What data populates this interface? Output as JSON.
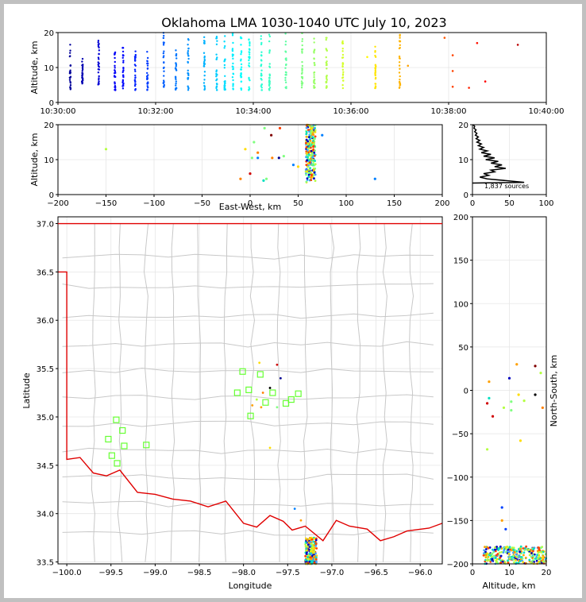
{
  "chart_data": {
    "title": "Oklahoma LMA 1030-1040 UTC July 10, 2023",
    "panels": [
      {
        "id": "time-altitude",
        "type": "scatter",
        "ylabel": "Altitude, km",
        "xlim": [
          "10:30:00",
          "10:40:00"
        ],
        "ylim": [
          0,
          20
        ],
        "xticks": [
          "10:30:00",
          "10:32:00",
          "10:34:00",
          "10:36:00",
          "10:38:00",
          "10:40:00"
        ],
        "yticks": [
          "0",
          "10",
          "20"
        ],
        "color_scale": "time (blue early to red late)",
        "source_columns": [
          {
            "t": "10:30:15",
            "ymin": 3.5,
            "ymax": 17
          },
          {
            "t": "10:30:30",
            "ymin": 5,
            "ymax": 13
          },
          {
            "t": "10:30:50",
            "ymin": 5,
            "ymax": 18
          },
          {
            "t": "10:31:10",
            "ymin": 3.5,
            "ymax": 15
          },
          {
            "t": "10:31:20",
            "ymin": 4,
            "ymax": 16
          },
          {
            "t": "10:31:35",
            "ymin": 3.5,
            "ymax": 15
          },
          {
            "t": "10:31:50",
            "ymin": 3.5,
            "ymax": 15
          },
          {
            "t": "10:32:10",
            "ymin": 3.5,
            "ymax": 20
          },
          {
            "t": "10:32:25",
            "ymin": 3.5,
            "ymax": 15
          },
          {
            "t": "10:32:40",
            "ymin": 3.5,
            "ymax": 19
          },
          {
            "t": "10:33:00",
            "ymin": 3.5,
            "ymax": 19
          },
          {
            "t": "10:33:15",
            "ymin": 3.5,
            "ymax": 19
          },
          {
            "t": "10:33:25",
            "ymin": 3.5,
            "ymax": 19
          },
          {
            "t": "10:33:35",
            "ymin": 3.5,
            "ymax": 20
          },
          {
            "t": "10:33:45",
            "ymin": 3.5,
            "ymax": 20
          },
          {
            "t": "10:33:55",
            "ymin": 3.5,
            "ymax": 19
          },
          {
            "t": "10:34:10",
            "ymin": 3.5,
            "ymax": 20
          },
          {
            "t": "10:34:20",
            "ymin": 3.5,
            "ymax": 20
          },
          {
            "t": "10:34:40",
            "ymin": 4,
            "ymax": 20
          },
          {
            "t": "10:35:00",
            "ymin": 4,
            "ymax": 20
          },
          {
            "t": "10:35:15",
            "ymin": 4,
            "ymax": 19
          },
          {
            "t": "10:35:30",
            "ymin": 4,
            "ymax": 20
          },
          {
            "t": "10:35:50",
            "ymin": 4,
            "ymax": 18
          },
          {
            "t": "10:36:30",
            "ymin": 4,
            "ymax": 17
          },
          {
            "t": "10:37:00",
            "ymin": 4,
            "ymax": 20
          }
        ],
        "isolated_points": [
          {
            "t": "10:36:20",
            "y": 13
          },
          {
            "t": "10:37:10",
            "y": 10.5
          },
          {
            "t": "10:37:55",
            "y": 18.5
          },
          {
            "t": "10:38:05",
            "y": 13.5
          },
          {
            "t": "10:38:05",
            "y": 9
          },
          {
            "t": "10:38:05",
            "y": 4.5
          },
          {
            "t": "10:38:25",
            "y": 4.2
          },
          {
            "t": "10:38:35",
            "y": 17
          },
          {
            "t": "10:38:45",
            "y": 6
          },
          {
            "t": "10:39:25",
            "y": 16.5
          }
        ]
      },
      {
        "id": "eastwest-altitude",
        "type": "scatter",
        "xlabel": "East-West, km",
        "ylabel": "Altitude, km",
        "xlim": [
          -200,
          200
        ],
        "ylim": [
          0,
          20
        ],
        "xticks": [
          "−200",
          "−150",
          "−100",
          "−50",
          "0",
          "50",
          "100",
          "150",
          "200"
        ],
        "yticks": [
          "0",
          "10",
          "20"
        ],
        "cluster": {
          "xmin": 58,
          "xmax": 68,
          "ymin": 3.5,
          "ymax": 20
        },
        "points": [
          {
            "x": -150,
            "y": 13,
            "c": "#b4ff40"
          },
          {
            "x": -10,
            "y": 4.5,
            "c": "#ff8000"
          },
          {
            "x": -5,
            "y": 13,
            "c": "#ffdd00"
          },
          {
            "x": 0,
            "y": 6,
            "c": "#d00000"
          },
          {
            "x": 2,
            "y": 10.5,
            "c": "#80ff80"
          },
          {
            "x": 4,
            "y": 15,
            "c": "#80ff80"
          },
          {
            "x": 8,
            "y": 10.5,
            "c": "#0080ff"
          },
          {
            "x": 8,
            "y": 12,
            "c": "#ff8000"
          },
          {
            "x": 14,
            "y": 4,
            "c": "#00e0c0"
          },
          {
            "x": 15,
            "y": 19,
            "c": "#80ff80"
          },
          {
            "x": 17,
            "y": 4.5,
            "c": "#80ff80"
          },
          {
            "x": 22,
            "y": 17,
            "c": "#800000"
          },
          {
            "x": 23,
            "y": 10.5,
            "c": "#ff8000"
          },
          {
            "x": 30,
            "y": 10.5,
            "c": "#000090"
          },
          {
            "x": 31,
            "y": 19,
            "c": "#ff4000"
          },
          {
            "x": 35,
            "y": 11,
            "c": "#80ff80"
          },
          {
            "x": 45,
            "y": 8.5,
            "c": "#0080ff"
          },
          {
            "x": 50,
            "y": 8,
            "c": "#ffdd00"
          },
          {
            "x": 75,
            "y": 17,
            "c": "#0080ff"
          },
          {
            "x": 130,
            "y": 4.5,
            "c": "#0080ff"
          }
        ]
      },
      {
        "id": "altitude-histogram",
        "type": "line",
        "xlim": [
          0,
          100
        ],
        "ylim": [
          0,
          20
        ],
        "xticks": [
          "0",
          "50",
          "100"
        ],
        "yticks": [
          "0",
          "10",
          "20"
        ],
        "annotation": "1,837 sources",
        "profile": [
          {
            "alt": 3.5,
            "n": 70
          },
          {
            "alt": 4.0,
            "n": 45
          },
          {
            "alt": 4.5,
            "n": 20
          },
          {
            "alt": 5.0,
            "n": 10
          },
          {
            "alt": 5.5,
            "n": 22
          },
          {
            "alt": 6.0,
            "n": 15
          },
          {
            "alt": 6.5,
            "n": 30
          },
          {
            "alt": 7.0,
            "n": 25
          },
          {
            "alt": 7.5,
            "n": 45
          },
          {
            "alt": 8.0,
            "n": 30
          },
          {
            "alt": 8.5,
            "n": 40
          },
          {
            "alt": 9.0,
            "n": 25
          },
          {
            "alt": 9.5,
            "n": 35
          },
          {
            "alt": 10.0,
            "n": 18
          },
          {
            "alt": 10.5,
            "n": 30
          },
          {
            "alt": 11.0,
            "n": 15
          },
          {
            "alt": 11.5,
            "n": 25
          },
          {
            "alt": 12.0,
            "n": 12
          },
          {
            "alt": 12.5,
            "n": 20
          },
          {
            "alt": 13.0,
            "n": 10
          },
          {
            "alt": 13.5,
            "n": 15
          },
          {
            "alt": 14.0,
            "n": 8
          },
          {
            "alt": 14.5,
            "n": 12
          },
          {
            "alt": 15.0,
            "n": 6
          },
          {
            "alt": 15.5,
            "n": 10
          },
          {
            "alt": 16.0,
            "n": 5
          },
          {
            "alt": 16.5,
            "n": 8
          },
          {
            "alt": 17.0,
            "n": 4
          },
          {
            "alt": 17.5,
            "n": 6
          },
          {
            "alt": 18.0,
            "n": 3
          },
          {
            "alt": 18.5,
            "n": 5
          },
          {
            "alt": 19.0,
            "n": 2
          },
          {
            "alt": 19.5,
            "n": 3
          },
          {
            "alt": 20.0,
            "n": 1
          }
        ]
      },
      {
        "id": "plan-view-map",
        "type": "scatter",
        "xlabel": "Longitude",
        "ylabel": "Latitude",
        "xlim": [
          -100.1,
          -95.75
        ],
        "ylim": [
          33.48,
          37.07
        ],
        "xticks": [
          "−100.0",
          "−99.5",
          "−99.0",
          "−98.5",
          "−98.0",
          "−97.5",
          "−97.0",
          "−96.5",
          "−96.0"
        ],
        "yticks": [
          "33.5",
          "34.0",
          "34.5",
          "35.0",
          "35.5",
          "36.0",
          "36.5",
          "37.0"
        ],
        "network_stations": [
          {
            "lon": -99.53,
            "lat": 34.77
          },
          {
            "lon": -99.44,
            "lat": 34.97
          },
          {
            "lon": -99.37,
            "lat": 34.86
          },
          {
            "lon": -99.49,
            "lat": 34.6
          },
          {
            "lon": -99.43,
            "lat": 34.52
          },
          {
            "lon": -99.35,
            "lat": 34.7
          },
          {
            "lon": -99.1,
            "lat": 34.71
          },
          {
            "lon": -98.07,
            "lat": 35.25
          },
          {
            "lon": -98.01,
            "lat": 35.47
          },
          {
            "lon": -97.94,
            "lat": 35.28
          },
          {
            "lon": -97.92,
            "lat": 35.01
          },
          {
            "lon": -97.81,
            "lat": 35.44
          },
          {
            "lon": -97.75,
            "lat": 35.15
          },
          {
            "lon": -97.67,
            "lat": 35.25
          },
          {
            "lon": -97.52,
            "lat": 35.14
          },
          {
            "lon": -97.46,
            "lat": 35.18
          },
          {
            "lon": -97.38,
            "lat": 35.24
          }
        ],
        "source_cluster": {
          "lon_min": -97.3,
          "lon_max": -97.17,
          "lat_min": 33.48,
          "lat_max": 33.75
        },
        "scattered_sources": [
          {
            "lon": -97.82,
            "lat": 35.56
          },
          {
            "lon": -97.62,
            "lat": 35.54
          },
          {
            "lon": -97.58,
            "lat": 35.4
          },
          {
            "lon": -97.85,
            "lat": 35.18
          },
          {
            "lon": -97.8,
            "lat": 35.1
          },
          {
            "lon": -97.7,
            "lat": 35.3
          },
          {
            "lon": -97.62,
            "lat": 35.1
          },
          {
            "lon": -97.9,
            "lat": 35.12
          },
          {
            "lon": -97.78,
            "lat": 35.25
          },
          {
            "lon": -97.7,
            "lat": 34.68
          },
          {
            "lon": -97.42,
            "lat": 34.05
          },
          {
            "lon": -97.35,
            "lat": 33.93
          }
        ]
      },
      {
        "id": "altitude-northsouth",
        "type": "scatter",
        "xlabel": "Altitude, km",
        "ylabel": "North-South, km",
        "xlim": [
          0,
          20
        ],
        "ylim": [
          -200,
          200
        ],
        "xticks": [
          "0",
          "10",
          "20"
        ],
        "yticks": [
          "−200",
          "−150",
          "−100",
          "−50",
          "0",
          "50",
          "100",
          "150",
          "200"
        ],
        "cluster": {
          "xmin": 3,
          "xmax": 20,
          "ymin": -200,
          "ymax": -180
        },
        "points": [
          {
            "x": 4,
            "y": -68,
            "c": "#b4ff40"
          },
          {
            "x": 4,
            "y": -15,
            "c": "#d00000"
          },
          {
            "x": 4.5,
            "y": -9,
            "c": "#00e0c0"
          },
          {
            "x": 4.5,
            "y": 10,
            "c": "#ffa000"
          },
          {
            "x": 5.5,
            "y": -30,
            "c": "#d00000"
          },
          {
            "x": 8,
            "y": -135,
            "c": "#0040ff"
          },
          {
            "x": 8,
            "y": -150,
            "c": "#ffa000"
          },
          {
            "x": 8.5,
            "y": -20,
            "c": "#b4ff40"
          },
          {
            "x": 9,
            "y": -160,
            "c": "#0040ff"
          },
          {
            "x": 10,
            "y": 14,
            "c": "#0000c0"
          },
          {
            "x": 10.5,
            "y": -13,
            "c": "#80ff80"
          },
          {
            "x": 10.5,
            "y": -23,
            "c": "#80ff80"
          },
          {
            "x": 12,
            "y": 30,
            "c": "#ffa000"
          },
          {
            "x": 12.5,
            "y": -5,
            "c": "#ffdd00"
          },
          {
            "x": 13,
            "y": -58,
            "c": "#ffdd00"
          },
          {
            "x": 14,
            "y": -12,
            "c": "#b4ff40"
          },
          {
            "x": 17,
            "y": 28,
            "c": "#800000"
          },
          {
            "x": 17,
            "y": -5,
            "c": "#000000"
          },
          {
            "x": 18.5,
            "y": 20,
            "c": "#b4ff40"
          },
          {
            "x": 19,
            "y": -20,
            "c": "#ff8000"
          }
        ]
      }
    ]
  }
}
